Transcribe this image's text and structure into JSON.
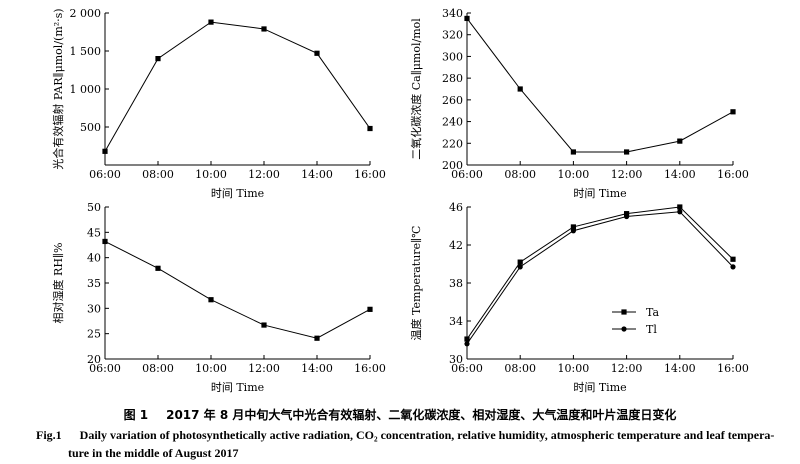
{
  "chart_data": [
    {
      "type": "line",
      "ylabel": "光合有效辐射 PAR∥μmol/(m²·s)",
      "xlabel": "时间 Time",
      "categories": [
        "06:00",
        "08:00",
        "10:00",
        "12:00",
        "14:00",
        "16:00"
      ],
      "ylim": [
        0,
        2000
      ],
      "yticks": [
        "500",
        "1 000",
        "1 500",
        "2 000"
      ],
      "yticks_values": [
        500,
        1000,
        1500,
        2000
      ],
      "series": [
        {
          "values": [
            180,
            1400,
            1880,
            1790,
            1470,
            480
          ],
          "marker": "square"
        }
      ]
    },
    {
      "type": "line",
      "ylabel": "二氧化碳浓度 Ca∥μmol/mol",
      "xlabel": "时间 Time",
      "categories": [
        "06:00",
        "08:00",
        "10:00",
        "12:00",
        "14:00",
        "16:00"
      ],
      "ylim": [
        200,
        340
      ],
      "yticks": [
        "200",
        "220",
        "240",
        "260",
        "280",
        "300",
        "320",
        "340"
      ],
      "yticks_values": [
        200,
        220,
        240,
        260,
        280,
        300,
        320,
        340
      ],
      "series": [
        {
          "values": [
            335,
            270,
            212,
            212,
            222,
            249
          ],
          "marker": "square"
        }
      ]
    },
    {
      "type": "line",
      "ylabel": "相对湿度 RH∥%",
      "xlabel": "时间 Time",
      "categories": [
        "06:00",
        "08:00",
        "10:00",
        "12:00",
        "14:00",
        "16:00"
      ],
      "ylim": [
        20,
        50
      ],
      "yticks": [
        "20",
        "25",
        "30",
        "35",
        "40",
        "45",
        "50"
      ],
      "yticks_values": [
        20,
        25,
        30,
        35,
        40,
        45,
        50
      ],
      "series": [
        {
          "values": [
            43.2,
            37.9,
            31.7,
            26.7,
            24.1,
            29.8
          ],
          "marker": "square"
        }
      ]
    },
    {
      "type": "line",
      "ylabel": "温度 Temperature∥℃",
      "xlabel": "时间 Time",
      "categories": [
        "06:00",
        "08:00",
        "10:00",
        "12:00",
        "14:00",
        "16:00"
      ],
      "ylim": [
        30,
        46
      ],
      "yticks": [
        "30",
        "34",
        "38",
        "42",
        "46"
      ],
      "yticks_values": [
        30,
        34,
        38,
        42,
        46
      ],
      "legend_position": "lower-center",
      "series": [
        {
          "name": "Ta",
          "values": [
            32.1,
            40.2,
            43.9,
            45.3,
            46.0,
            40.5
          ],
          "marker": "square"
        },
        {
          "name": "Tl",
          "values": [
            31.6,
            39.7,
            43.5,
            45.0,
            45.5,
            39.7
          ],
          "marker": "circle"
        }
      ]
    }
  ],
  "caption": {
    "cn_label": "图 1",
    "cn": "2017 年 8 月中旬大气中光合有效辐射、二氧化碳浓度、相对湿度、大气温度和叶片温度日变化",
    "en_label": "Fig.1",
    "en_line1": "Daily variation of photosynthetically active radiation, CO₂ concentration, relative humidity, atmospheric temperature and leaf tempera-",
    "en_line2": "ture in the middle of August 2017"
  }
}
